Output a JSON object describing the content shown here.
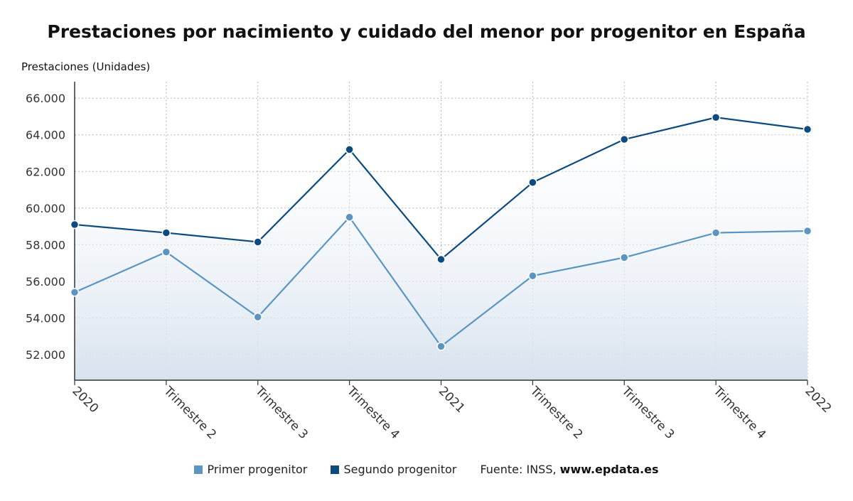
{
  "chart_data": {
    "type": "line",
    "title": "Prestaciones por nacimiento y cuidado del menor por progenitor en España",
    "ylabel": "Prestaciones (Unidades)",
    "xlabel": "",
    "categories": [
      "2020",
      "Trimestre 2",
      "Trimestre 3",
      "Trimestre 4",
      "2021",
      "Trimestre 2",
      "Trimestre 3",
      "Trimestre 4",
      "2022"
    ],
    "ylim": [
      50600,
      66900
    ],
    "yticks": [
      52000,
      54000,
      56000,
      58000,
      60000,
      62000,
      64000,
      66000
    ],
    "ytick_labels": [
      "52.000",
      "54.000",
      "56.000",
      "58.000",
      "60.000",
      "62.000",
      "64.000",
      "66.000"
    ],
    "grid": true,
    "legend_position": "bottom",
    "series": [
      {
        "name": "Primer progenitor",
        "color": "#5b96c2",
        "values": [
          55400,
          57600,
          54050,
          59500,
          52450,
          56300,
          57300,
          58650,
          58750
        ]
      },
      {
        "name": "Segundo progenitor",
        "color": "#0d4a7e",
        "values": [
          59100,
          58650,
          58150,
          63200,
          57200,
          61400,
          63750,
          64950,
          64300
        ]
      }
    ]
  },
  "legend": {
    "items": [
      {
        "label": "Primer progenitor",
        "color": "#5b96c2"
      },
      {
        "label": "Segundo progenitor",
        "color": "#0d4a7e"
      }
    ],
    "source_prefix": "Fuente: INSS, ",
    "source_url": "www.epdata.es"
  }
}
